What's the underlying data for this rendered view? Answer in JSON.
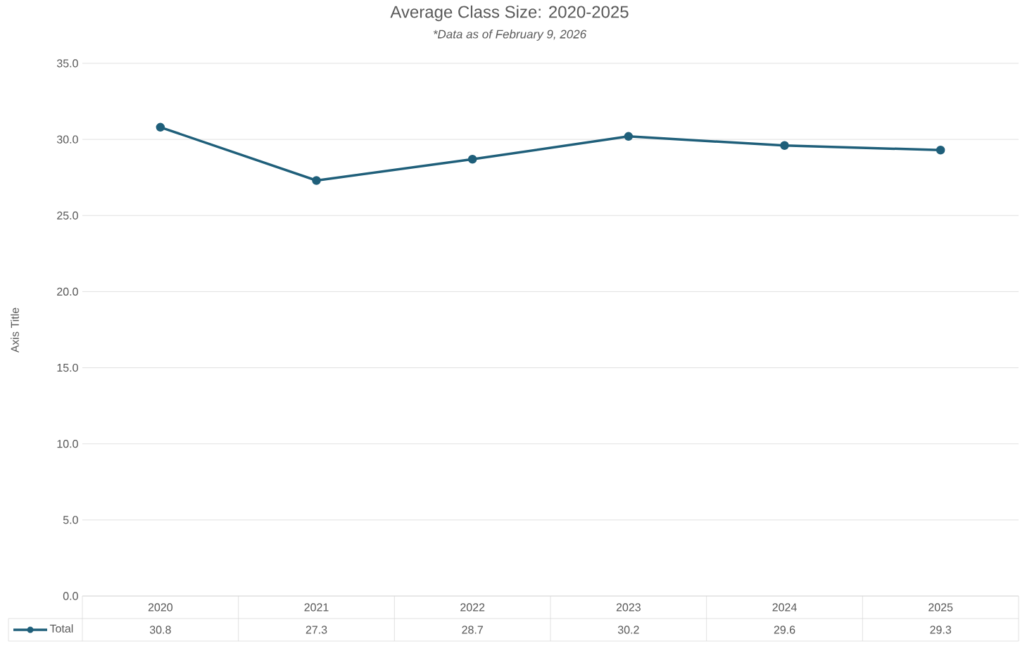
{
  "chart_data": {
    "type": "line",
    "title": "Average Class Size: 2020-2025",
    "subtitle": "*Data as of February 9, 2026",
    "ylabel": "Axis Title",
    "categories": [
      "2020",
      "2021",
      "2022",
      "2023",
      "2024",
      "2025"
    ],
    "series": [
      {
        "name": "Total",
        "color": "#1f5f7a",
        "values": [
          30.8,
          27.3,
          28.7,
          30.2,
          29.6,
          29.3
        ]
      }
    ],
    "ylim": [
      0,
      35
    ],
    "yticks": [
      {
        "value": 0,
        "label": "0.0"
      },
      {
        "value": 5,
        "label": "5.0"
      },
      {
        "value": 10,
        "label": "10.0"
      },
      {
        "value": 15,
        "label": "15.0"
      },
      {
        "value": 20,
        "label": "20.0"
      },
      {
        "value": 25,
        "label": "25.0"
      },
      {
        "value": 30,
        "label": "30.0"
      },
      {
        "value": 35,
        "label": "35.0"
      }
    ],
    "grid": "y",
    "marker": "circle",
    "line_style": "solid",
    "legend": "bottom",
    "data_labels": true
  }
}
